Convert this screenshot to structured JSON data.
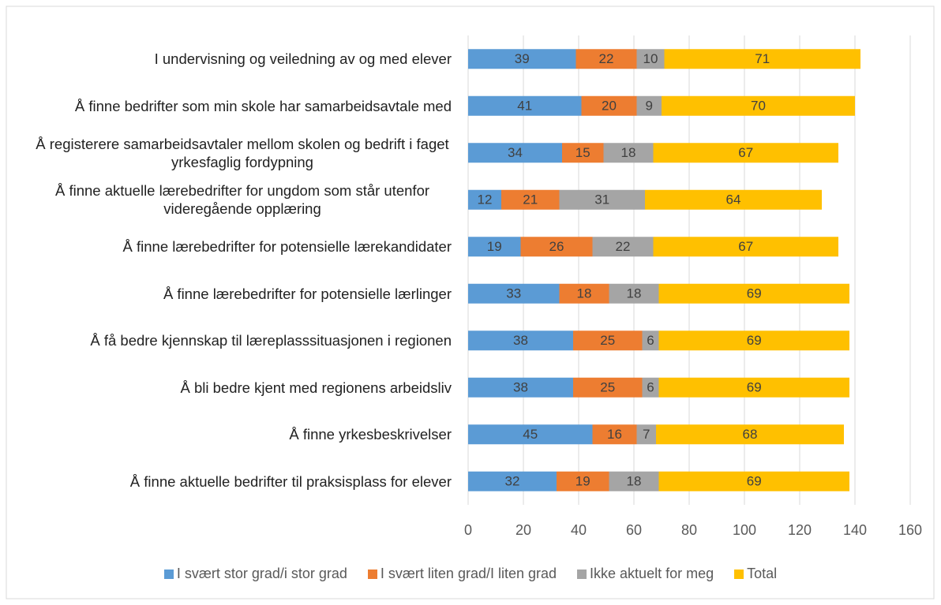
{
  "chart_data": {
    "type": "stacked_barh",
    "categories": [
      "I undervisning og veiledning av og med elever",
      "Å finne bedrifter som min skole har samarbeidsavtale med",
      "Å registerere samarbeidsavtaler mellom skolen og bedrift i faget yrkesfaglig fordypning",
      "Å finne aktuelle lærebedrifter for ungdom som står utenfor videregående opplæring",
      "Å finne lærebedrifter for potensielle lærekandidater",
      "Å finne lærebedrifter for potensielle lærlinger",
      "Å få bedre kjennskap til læreplasssituasjonen i regionen",
      "Å bli bedre kjent med regionens arbeidsliv",
      "Å finne yrkesbeskrivelser",
      "Å finne aktuelle bedrifter til praksisplass for elever"
    ],
    "series": [
      {
        "name": "I svært stor grad/i stor grad",
        "color": "#5B9BD5",
        "values": [
          39,
          41,
          34,
          12,
          19,
          33,
          38,
          38,
          45,
          32
        ]
      },
      {
        "name": "I svært liten grad/I liten grad",
        "color": "#ED7D31",
        "values": [
          22,
          20,
          15,
          21,
          26,
          18,
          25,
          25,
          16,
          19
        ]
      },
      {
        "name": "Ikke aktuelt for meg",
        "color": "#A5A5A5",
        "values": [
          10,
          9,
          18,
          31,
          22,
          18,
          6,
          6,
          7,
          18
        ]
      },
      {
        "name": "Total",
        "color": "#FFC000",
        "values": [
          71,
          70,
          67,
          64,
          67,
          69,
          69,
          69,
          68,
          69
        ]
      }
    ],
    "xlim": [
      0,
      160
    ],
    "xticks": [
      0,
      20,
      40,
      60,
      80,
      100,
      120,
      140,
      160
    ],
    "grid": true,
    "legend": "bottom"
  }
}
